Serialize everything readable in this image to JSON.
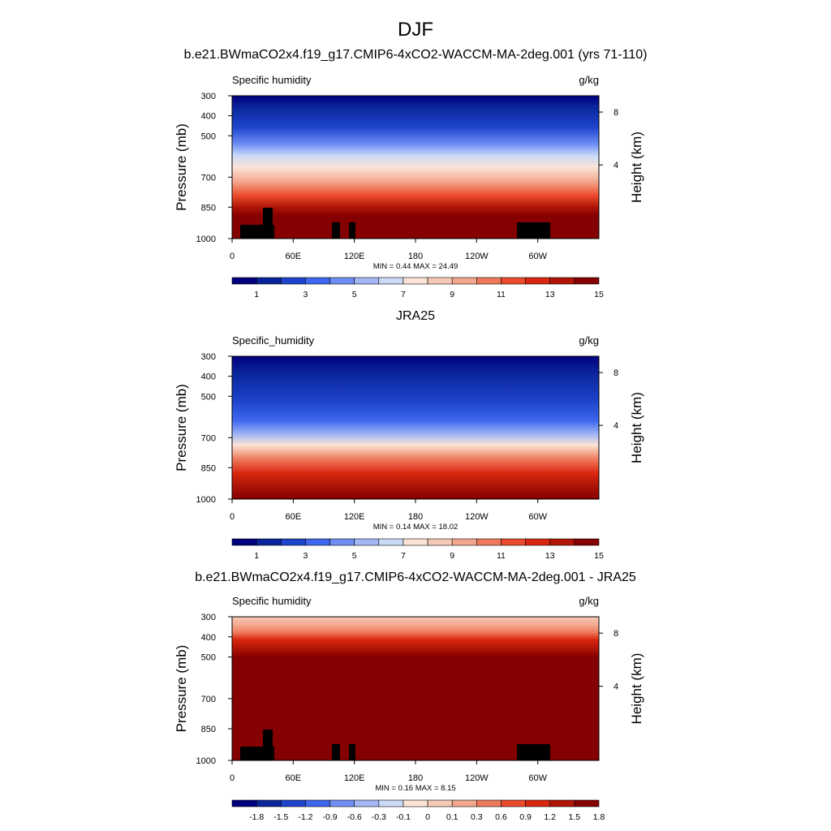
{
  "figure": {
    "title": "DJF"
  },
  "colors": {
    "cmap": [
      "#00007f",
      "#0a259c",
      "#1e44cc",
      "#3e67ee",
      "#6e8ef4",
      "#a4b7f5",
      "#cadaf7",
      "#fbe4d6",
      "#f6c9b6",
      "#f3a78e",
      "#ef7a5b",
      "#eb4a2b",
      "#d9260f",
      "#b01507",
      "#850000"
    ],
    "land_mask": "#000000",
    "axis": "#000000"
  },
  "chart_data": [
    {
      "type": "heatmap",
      "panel_title": "b.e21.BWmaCO2x4.f19_g17.CMIP6-4xCO2-WACCM-MA-2deg.001 (yrs 71-110)",
      "left_label": "Specific humidity",
      "right_label": "g/kg",
      "ylabel": "Pressure (mb)",
      "y2label": "Height (km)",
      "xticks": [
        "0",
        "60E",
        "120E",
        "180",
        "120W",
        "60W"
      ],
      "yticks": [
        "300",
        "400",
        "500",
        "700",
        "850",
        "1000"
      ],
      "y2ticks": [
        "8",
        "4"
      ],
      "ylim": [
        1000,
        300
      ],
      "minmax": "MIN =   0.44  MAX =   24.49",
      "colorbar_labels": [
        "1",
        "3",
        "5",
        "7",
        "9",
        "11",
        "13",
        "15"
      ],
      "min": 0.44,
      "max": 24.49
    },
    {
      "type": "heatmap",
      "panel_title": "JRA25",
      "left_label": "Specific_humidity",
      "right_label": "g/kg",
      "ylabel": "Pressure (mb)",
      "y2label": "Height (km)",
      "xticks": [
        "0",
        "60E",
        "120E",
        "180",
        "120W",
        "60W"
      ],
      "yticks": [
        "300",
        "400",
        "500",
        "700",
        "850",
        "1000"
      ],
      "y2ticks": [
        "8",
        "4"
      ],
      "ylim": [
        1000,
        300
      ],
      "minmax": "MIN =   0.14  MAX =   18.02",
      "colorbar_labels": [
        "1",
        "3",
        "5",
        "7",
        "9",
        "11",
        "13",
        "15"
      ],
      "min": 0.14,
      "max": 18.02
    },
    {
      "type": "heatmap",
      "panel_title": "b.e21.BWmaCO2x4.f19_g17.CMIP6-4xCO2-WACCM-MA-2deg.001 - JRA25",
      "left_label": "Specific humidity",
      "right_label": "g/kg",
      "ylabel": "Pressure (mb)",
      "y2label": "Height (km)",
      "xticks": [
        "0",
        "60E",
        "120E",
        "180",
        "120W",
        "60W"
      ],
      "yticks": [
        "300",
        "400",
        "500",
        "700",
        "850",
        "1000"
      ],
      "y2ticks": [
        "8",
        "4"
      ],
      "ylim": [
        1000,
        300
      ],
      "minmax": "MIN =   0.16  MAX =   8.15",
      "colorbar_labels": [
        "-1.8",
        "-1.5",
        "-1.2",
        "-0.9",
        "-0.6",
        "-0.3",
        "-0.1",
        "0",
        "0.1",
        "0.3",
        "0.6",
        "0.9",
        "1.2",
        "1.5",
        "1.8"
      ],
      "min": 0.16,
      "max": 8.15
    }
  ]
}
